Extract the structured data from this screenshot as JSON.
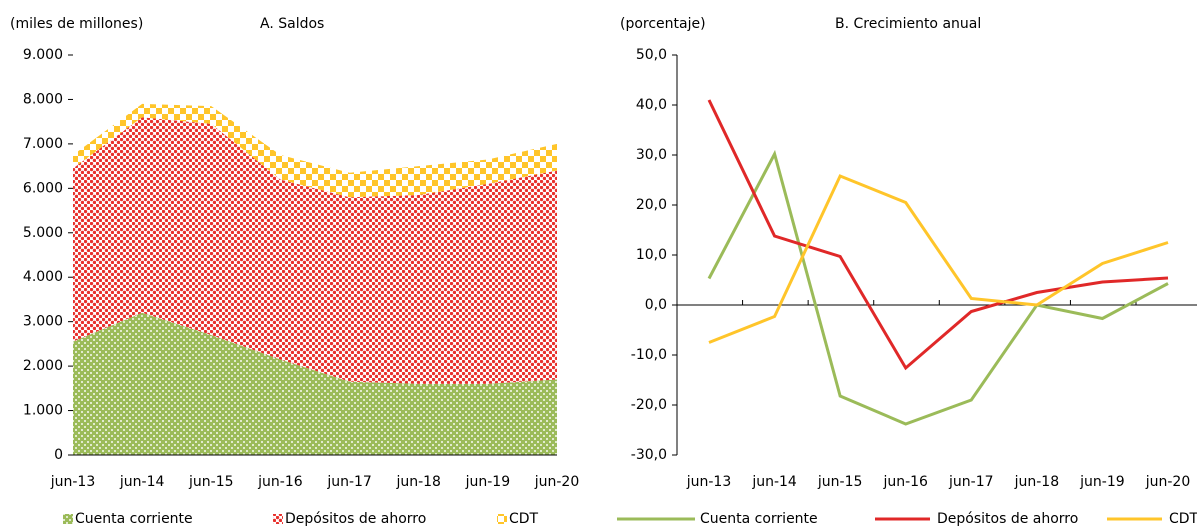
{
  "chart_data": [
    {
      "type": "area",
      "title": "A. Saldos",
      "y_label": "(miles de millones)",
      "categories": [
        "jun-13",
        "jun-14",
        "jun-15",
        "jun-16",
        "jun-17",
        "jun-18",
        "jun-19",
        "jun-20"
      ],
      "series": [
        {
          "name": "Cuenta corriente",
          "color": "#9bbb59",
          "values": [
            2550,
            3200,
            2700,
            2150,
            1650,
            1600,
            1600,
            1700
          ]
        },
        {
          "name": "Depósitos de ahorro",
          "color": "#e8302c",
          "values": [
            3900,
            4400,
            4750,
            4050,
            4150,
            4250,
            4500,
            4700
          ]
        },
        {
          "name": "CDT",
          "color": "#ffc52a",
          "values": [
            300,
            300,
            400,
            550,
            550,
            650,
            550,
            600
          ]
        }
      ],
      "ylim": [
        0,
        9000
      ],
      "yticks": [
        0,
        {
          "value": 1000,
          "label": "1.000"
        },
        {
          "value": 2000,
          "label": "2.000"
        },
        {
          "value": 3000,
          "label": "3.000"
        },
        {
          "value": 4000,
          "label": "4.000"
        },
        {
          "value": 5000,
          "label": "5.000"
        },
        {
          "value": 6000,
          "label": "6.000"
        },
        {
          "value": 7000,
          "label": "7.000"
        },
        {
          "value": 8000,
          "label": "8.000"
        },
        {
          "value": 9000,
          "label": "9.000"
        }
      ]
    },
    {
      "type": "line",
      "title": "B. Crecimiento anual",
      "y_label": "(porcentaje)",
      "categories": [
        "jun-13",
        "jun-14",
        "jun-15",
        "jun-16",
        "jun-17",
        "jun-18",
        "jun-19",
        "jun-20"
      ],
      "series": [
        {
          "name": "Cuenta corriente",
          "color": "#9bbb59",
          "values": [
            5.3,
            30.2,
            -18.2,
            -23.8,
            -19,
            0,
            -2.7,
            4.3
          ]
        },
        {
          "name": "Depósitos de ahorro",
          "color": "#e02828",
          "values": [
            41,
            13.8,
            9.7,
            -12.6,
            -1.3,
            2.5,
            4.6,
            5.4
          ]
        },
        {
          "name": "CDT",
          "color": "#ffc52a",
          "values": [
            -7.5,
            -2.3,
            25.8,
            20.5,
            1.3,
            0,
            8.3,
            12.5
          ]
        }
      ],
      "ylim": [
        -30,
        50
      ],
      "yticks": [
        {
          "value": -30,
          "label": "-30,0"
        },
        {
          "value": -20,
          "label": "-20,0"
        },
        {
          "value": -10,
          "label": "-10,0"
        },
        {
          "value": 0,
          "label": "0,0"
        },
        {
          "value": 10,
          "label": "10,0"
        },
        {
          "value": 20,
          "label": "20,0"
        },
        {
          "value": 30,
          "label": "30,0"
        },
        {
          "value": 40,
          "label": "40,0"
        },
        {
          "value": 50,
          "label": "50,0"
        }
      ]
    }
  ]
}
